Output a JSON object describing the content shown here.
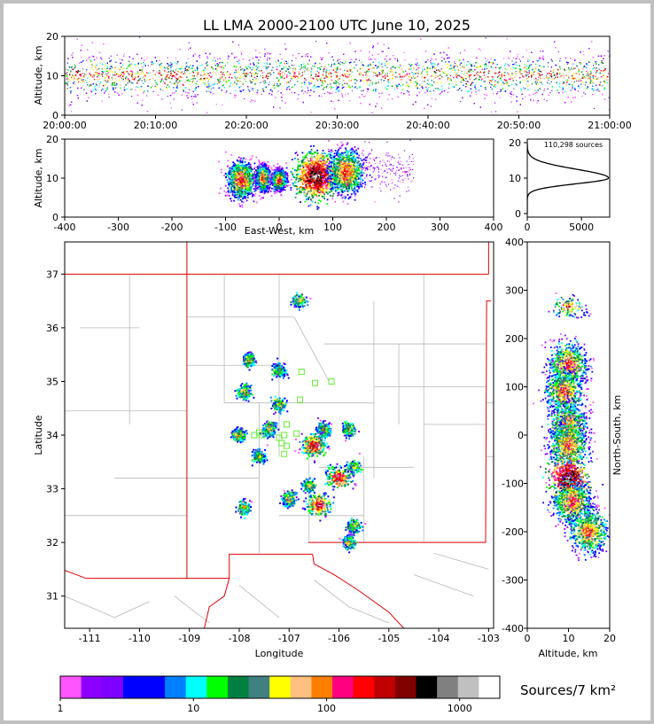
{
  "title": "LL LMA 2000-2100 UTC June 10, 2025",
  "source_count_label": "110,298 sources",
  "colorbar": {
    "label": "Sources/7 km²",
    "scale": "log",
    "range": [
      1,
      2000
    ],
    "ticks": [
      "1",
      "10",
      "100",
      "1000"
    ],
    "colors": [
      "#ff55ff",
      "#8c00ff",
      "#8000ff",
      "#0000ff",
      "#0000ff",
      "#0080ff",
      "#00ffff",
      "#00ff00",
      "#008040",
      "#408080",
      "#ffff00",
      "#ffc080",
      "#ff8000",
      "#ff0080",
      "#ff0000",
      "#c00000",
      "#800000",
      "#000000",
      "#808080",
      "#c0c0c0",
      "#ffffff"
    ]
  },
  "chart_data": [
    {
      "type": "scatter",
      "name": "time-height",
      "xlabel": "",
      "ylabel": "Altitude, km",
      "x_ticks": [
        "20:00:00",
        "20:10:00",
        "20:20:00",
        "20:30:00",
        "20:40:00",
        "20:50:00",
        "21:00:00"
      ],
      "xlim": [
        "20:00:00",
        "21:00:00"
      ],
      "ylim": [
        0,
        20
      ],
      "y_ticks": [
        0,
        10,
        20
      ],
      "density_core_altitude_km": [
        7,
        13
      ]
    },
    {
      "type": "scatter",
      "name": "east-west-altitude",
      "xlabel": "East-West, km",
      "ylabel": "Altitude, km",
      "xlim": [
        -400,
        400
      ],
      "x_ticks": [
        -400,
        -300,
        -200,
        -100,
        0,
        100,
        200,
        300,
        400
      ],
      "ylim": [
        0,
        20
      ],
      "y_ticks": [
        0,
        10,
        20
      ],
      "clusters": [
        {
          "x": [
            -90,
            -50
          ],
          "y": [
            5,
            14
          ]
        },
        {
          "x": [
            -40,
            -20
          ],
          "y": [
            7,
            13
          ]
        },
        {
          "x": [
            -10,
            10
          ],
          "y": [
            7,
            12
          ]
        },
        {
          "x": [
            40,
            100
          ],
          "y": [
            5,
            16
          ]
        },
        {
          "x": [
            100,
            150
          ],
          "y": [
            6,
            17
          ]
        }
      ]
    },
    {
      "type": "line",
      "name": "altitude-histogram",
      "xlim": [
        0,
        7600
      ],
      "x_ticks": [
        0,
        5000
      ],
      "ylim": [
        -1,
        21
      ],
      "y_ticks": [
        0,
        10,
        20
      ],
      "peak_altitude_km": 10,
      "peak_count": 7400
    },
    {
      "type": "scatter",
      "name": "plan-view",
      "xlabel": "Longitude",
      "ylabel": "Latitude",
      "xlim": [
        -111.5,
        -102.9
      ],
      "ylim": [
        30.4,
        37.6
      ],
      "x_ticks": [
        -111,
        -110,
        -109,
        -108,
        -107,
        -106,
        -105,
        -104,
        -103
      ],
      "y_ticks": [
        31,
        32,
        33,
        34,
        35,
        36,
        37
      ],
      "clusters": [
        {
          "lon": -106.8,
          "lat": 36.5
        },
        {
          "lon": -107.8,
          "lat": 35.4
        },
        {
          "lon": -107.2,
          "lat": 35.2
        },
        {
          "lon": -107.9,
          "lat": 34.8
        },
        {
          "lon": -107.2,
          "lat": 34.55
        },
        {
          "lon": -108.0,
          "lat": 34.0
        },
        {
          "lon": -107.4,
          "lat": 34.1
        },
        {
          "lon": -106.3,
          "lat": 34.1
        },
        {
          "lon": -105.8,
          "lat": 34.1
        },
        {
          "lon": -106.5,
          "lat": 33.8
        },
        {
          "lon": -106.0,
          "lat": 33.2
        },
        {
          "lon": -105.7,
          "lat": 33.4
        },
        {
          "lon": -106.6,
          "lat": 33.05
        },
        {
          "lon": -106.4,
          "lat": 32.7
        },
        {
          "lon": -107.0,
          "lat": 32.8
        },
        {
          "lon": -107.9,
          "lat": 32.65
        },
        {
          "lon": -105.7,
          "lat": 32.3
        },
        {
          "lon": -105.8,
          "lat": 32.0
        },
        {
          "lon": -107.6,
          "lat": 33.6
        }
      ],
      "stations": [
        {
          "lon": -106.75,
          "lat": 35.18
        },
        {
          "lon": -106.15,
          "lat": 35.0
        },
        {
          "lon": -106.48,
          "lat": 34.97
        },
        {
          "lon": -106.78,
          "lat": 34.66
        },
        {
          "lon": -107.05,
          "lat": 34.2
        },
        {
          "lon": -107.1,
          "lat": 34.0
        },
        {
          "lon": -107.2,
          "lat": 33.95
        },
        {
          "lon": -107.15,
          "lat": 33.85
        },
        {
          "lon": -107.05,
          "lat": 33.8
        },
        {
          "lon": -107.1,
          "lat": 33.65
        },
        {
          "lon": -106.85,
          "lat": 34.03
        },
        {
          "lon": -107.6,
          "lat": 34.05
        },
        {
          "lon": -107.7,
          "lat": 34.0
        },
        {
          "lon": -107.55,
          "lat": 34.0
        }
      ]
    },
    {
      "type": "scatter",
      "name": "altitude-north-south",
      "xlabel": "Altitude, km",
      "ylabel": "North-South, km",
      "xlim": [
        0,
        20
      ],
      "x_ticks": [
        0,
        10,
        20
      ],
      "ylim": [
        -400,
        400
      ],
      "y_ticks": [
        -400,
        -300,
        -200,
        -100,
        0,
        100,
        200,
        300,
        400
      ],
      "clusters": [
        {
          "ns": 265,
          "alt": 10
        },
        {
          "ns": 145,
          "alt": 10
        },
        {
          "ns": 90,
          "alt": 9
        },
        {
          "ns": 20,
          "alt": 10
        },
        {
          "ns": -20,
          "alt": 10
        },
        {
          "ns": -90,
          "alt": 10
        },
        {
          "ns": -140,
          "alt": 11
        },
        {
          "ns": -200,
          "alt": 15
        }
      ]
    }
  ]
}
